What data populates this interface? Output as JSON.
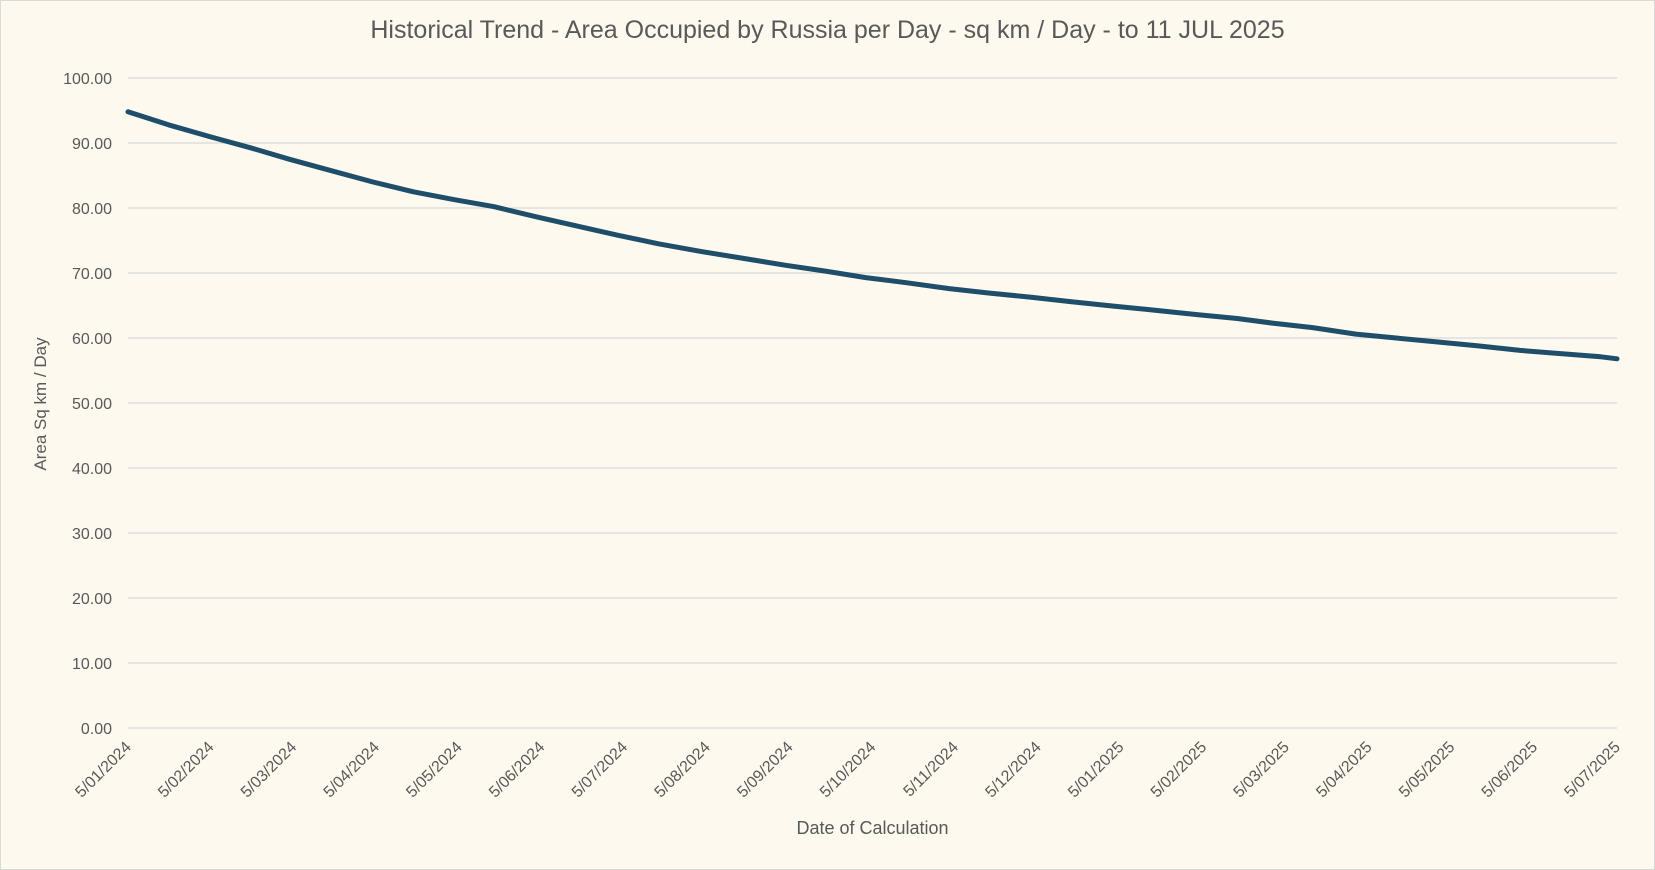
{
  "chart_data": {
    "type": "line",
    "title": "Historical Trend - Area Occupied by Russia per Day - sq km / Day - to 11 JUL 2025",
    "xlabel": "Date of Calculation",
    "ylabel": "Area Sq km / Day",
    "ylim": [
      0,
      100
    ],
    "yticks": [
      "0.00",
      "10.00",
      "20.00",
      "30.00",
      "40.00",
      "50.00",
      "60.00",
      "70.00",
      "80.00",
      "90.00",
      "100.00"
    ],
    "xticks": [
      "5/01/2024",
      "5/02/2024",
      "5/03/2024",
      "5/04/2024",
      "5/05/2024",
      "5/06/2024",
      "5/07/2024",
      "5/08/2024",
      "5/09/2024",
      "5/10/2024",
      "5/11/2024",
      "5/12/2024",
      "5/01/2025",
      "5/02/2025",
      "5/03/2025",
      "5/04/2025",
      "5/05/2025",
      "5/06/2025",
      "5/07/2025"
    ],
    "grid": true,
    "legend": "none",
    "line_color": "#1f4e6b",
    "series": [
      {
        "x": [
          "2024-01-05",
          "2024-01-20",
          "2024-02-05",
          "2024-02-20",
          "2024-03-05",
          "2024-03-20",
          "2024-04-05",
          "2024-04-20",
          "2024-05-05",
          "2024-05-20",
          "2024-06-05",
          "2024-06-20",
          "2024-07-05",
          "2024-07-20",
          "2024-08-05",
          "2024-08-20",
          "2024-09-05",
          "2024-09-20",
          "2024-10-05",
          "2024-10-20",
          "2024-11-05",
          "2024-11-20",
          "2024-12-05",
          "2024-12-20",
          "2025-01-05",
          "2025-01-20",
          "2025-02-05",
          "2025-02-20",
          "2025-03-05",
          "2025-03-20",
          "2025-04-05",
          "2025-04-20",
          "2025-05-05",
          "2025-05-20",
          "2025-06-05",
          "2025-06-20",
          "2025-07-05",
          "2025-07-11"
        ],
        "values": [
          94.8,
          92.8,
          90.9,
          89.2,
          87.5,
          85.8,
          84.0,
          82.5,
          81.3,
          80.2,
          78.6,
          77.2,
          75.8,
          74.5,
          73.3,
          72.3,
          71.2,
          70.3,
          69.3,
          68.5,
          67.6,
          66.9,
          66.3,
          65.6,
          64.9,
          64.3,
          63.6,
          63.0,
          62.3,
          61.6,
          60.6,
          60.0,
          59.4,
          58.8,
          58.1,
          57.6,
          57.1,
          56.8
        ]
      }
    ]
  }
}
